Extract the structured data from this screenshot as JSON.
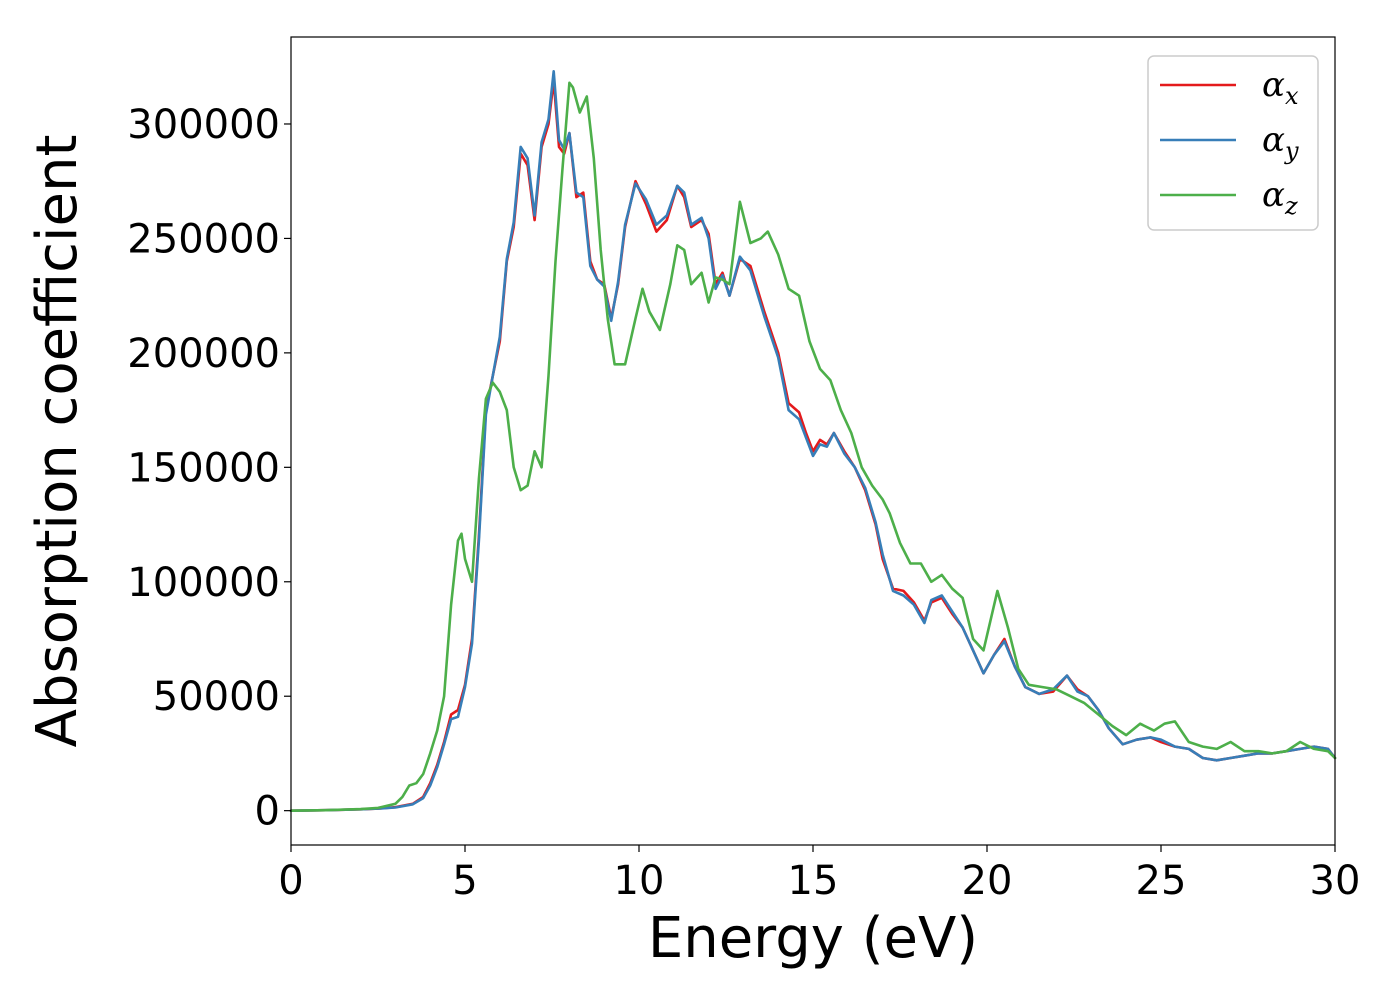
{
  "chart_data": {
    "type": "line",
    "title": "",
    "xlabel": "Energy (eV)",
    "ylabel": "Absorption coefficient",
    "xlim": [
      0,
      30
    ],
    "ylim": [
      -15000,
      338000
    ],
    "xticks": [
      0,
      5,
      10,
      15,
      20,
      25,
      30
    ],
    "yticks": [
      0,
      50000,
      100000,
      150000,
      200000,
      250000,
      300000
    ],
    "grid": false,
    "legend_position": "top-right",
    "series": [
      {
        "name": "α",
        "subscript": "x",
        "color": "#e41a1c",
        "x": [
          0,
          1,
          2,
          2.5,
          3,
          3.5,
          3.8,
          4.0,
          4.2,
          4.4,
          4.6,
          4.8,
          5.0,
          5.2,
          5.4,
          5.6,
          5.8,
          6.0,
          6.2,
          6.4,
          6.6,
          6.8,
          7.0,
          7.2,
          7.4,
          7.55,
          7.7,
          7.85,
          8.0,
          8.2,
          8.4,
          8.6,
          8.8,
          9.0,
          9.2,
          9.4,
          9.6,
          9.9,
          10.2,
          10.5,
          10.8,
          11.1,
          11.3,
          11.5,
          11.8,
          12.0,
          12.2,
          12.4,
          12.6,
          12.9,
          13.2,
          13.6,
          14.0,
          14.3,
          14.6,
          14.8,
          15.0,
          15.2,
          15.4,
          15.6,
          15.9,
          16.2,
          16.5,
          16.8,
          17.0,
          17.3,
          17.6,
          17.9,
          18.2,
          18.4,
          18.7,
          19.0,
          19.3,
          19.6,
          19.9,
          20.2,
          20.5,
          20.8,
          21.1,
          21.5,
          21.9,
          22.3,
          22.6,
          22.9,
          23.2,
          23.5,
          23.9,
          24.3,
          24.7,
          25.0,
          25.4,
          25.8,
          26.2,
          26.6,
          27.0,
          27.4,
          27.8,
          28.2,
          28.6,
          29.0,
          29.4,
          29.8,
          30.0
        ],
        "y": [
          0,
          200,
          600,
          900,
          1500,
          3000,
          6000,
          12000,
          20000,
          30000,
          42000,
          44000,
          55000,
          75000,
          120000,
          175000,
          190000,
          205000,
          240000,
          255000,
          287000,
          282000,
          258000,
          290000,
          300000,
          319000,
          290000,
          287000,
          296000,
          268000,
          270000,
          240000,
          232000,
          230000,
          215000,
          230000,
          255000,
          275000,
          265000,
          253000,
          258000,
          273000,
          268000,
          255000,
          258000,
          252000,
          230000,
          235000,
          225000,
          241000,
          238000,
          218000,
          200000,
          178000,
          174000,
          165000,
          157000,
          162000,
          160000,
          165000,
          157000,
          150000,
          140000,
          125000,
          110000,
          97000,
          96000,
          91000,
          83000,
          91000,
          93000,
          86000,
          80000,
          70000,
          60000,
          68000,
          75000,
          63000,
          54000,
          51000,
          52000,
          59000,
          53000,
          50000,
          44000,
          36000,
          29000,
          31000,
          32000,
          30000,
          28000,
          27000,
          23000,
          22000,
          23000,
          24000,
          25000,
          25000,
          26000,
          27000,
          28000,
          27000,
          23000
        ]
      },
      {
        "name": "α",
        "subscript": "y",
        "color": "#377eb8",
        "x": [
          0,
          1,
          2,
          2.5,
          3,
          3.5,
          3.8,
          4.0,
          4.2,
          4.4,
          4.6,
          4.8,
          5.0,
          5.2,
          5.4,
          5.6,
          5.8,
          6.0,
          6.2,
          6.4,
          6.6,
          6.8,
          7.0,
          7.2,
          7.4,
          7.55,
          7.7,
          7.85,
          8.0,
          8.2,
          8.4,
          8.6,
          8.8,
          9.0,
          9.2,
          9.4,
          9.6,
          9.9,
          10.2,
          10.5,
          10.8,
          11.1,
          11.3,
          11.5,
          11.8,
          12.0,
          12.2,
          12.4,
          12.6,
          12.9,
          13.2,
          13.6,
          14.0,
          14.3,
          14.6,
          14.8,
          15.0,
          15.2,
          15.4,
          15.6,
          15.9,
          16.2,
          16.5,
          16.8,
          17.0,
          17.3,
          17.6,
          17.9,
          18.2,
          18.4,
          18.7,
          19.0,
          19.3,
          19.6,
          19.9,
          20.2,
          20.5,
          20.8,
          21.1,
          21.5,
          21.9,
          22.3,
          22.6,
          22.9,
          23.2,
          23.5,
          23.9,
          24.3,
          24.7,
          25.0,
          25.4,
          25.8,
          26.2,
          26.6,
          27.0,
          27.4,
          27.8,
          28.2,
          28.6,
          29.0,
          29.4,
          29.8,
          30.0
        ],
        "y": [
          0,
          200,
          600,
          900,
          1400,
          2800,
          5500,
          11000,
          19000,
          29000,
          40000,
          41000,
          54000,
          73000,
          118000,
          173000,
          190000,
          207000,
          241000,
          257000,
          290000,
          285000,
          260000,
          292000,
          302000,
          323000,
          293000,
          289000,
          296000,
          270000,
          268000,
          238000,
          232000,
          229000,
          214000,
          231000,
          256000,
          274000,
          267000,
          256000,
          260000,
          273000,
          270000,
          256000,
          259000,
          250000,
          228000,
          234000,
          225000,
          242000,
          236000,
          216000,
          198000,
          175000,
          171000,
          163000,
          155000,
          160000,
          159000,
          165000,
          156000,
          150000,
          141000,
          126000,
          112000,
          96000,
          94000,
          90000,
          82000,
          92000,
          94000,
          87000,
          80000,
          70000,
          60000,
          68000,
          74000,
          63000,
          54000,
          51000,
          53000,
          59000,
          52000,
          50000,
          44000,
          36000,
          29000,
          31000,
          32000,
          31000,
          28000,
          27000,
          23000,
          22000,
          23000,
          24000,
          25000,
          25000,
          26000,
          27000,
          28000,
          27000,
          23000
        ]
      },
      {
        "name": "α",
        "subscript": "z",
        "color": "#4daf4a",
        "x": [
          0,
          1,
          2,
          2.5,
          3,
          3.2,
          3.4,
          3.6,
          3.8,
          4.0,
          4.2,
          4.4,
          4.6,
          4.8,
          4.9,
          5.0,
          5.2,
          5.4,
          5.6,
          5.8,
          6.0,
          6.2,
          6.4,
          6.6,
          6.8,
          7.0,
          7.2,
          7.4,
          7.6,
          7.8,
          8.0,
          8.1,
          8.3,
          8.5,
          8.7,
          8.9,
          9.1,
          9.3,
          9.6,
          9.9,
          10.1,
          10.3,
          10.6,
          10.9,
          11.1,
          11.3,
          11.5,
          11.8,
          12.0,
          12.2,
          12.4,
          12.6,
          12.9,
          13.2,
          13.5,
          13.7,
          14.0,
          14.3,
          14.6,
          14.9,
          15.2,
          15.5,
          15.8,
          16.1,
          16.4,
          16.7,
          17.0,
          17.2,
          17.5,
          17.8,
          18.1,
          18.4,
          18.7,
          19.0,
          19.3,
          19.6,
          19.9,
          20.3,
          20.6,
          20.9,
          21.2,
          21.6,
          22.0,
          22.4,
          22.8,
          23.2,
          23.6,
          24.0,
          24.4,
          24.8,
          25.1,
          25.4,
          25.8,
          26.2,
          26.6,
          27.0,
          27.4,
          27.8,
          28.2,
          28.6,
          29.0,
          29.4,
          29.8,
          30.0
        ],
        "y": [
          0,
          200,
          700,
          1200,
          3000,
          6000,
          11000,
          12000,
          16000,
          25000,
          35000,
          50000,
          90000,
          118000,
          121000,
          110000,
          100000,
          145000,
          180000,
          187000,
          183000,
          175000,
          150000,
          140000,
          142000,
          157000,
          150000,
          190000,
          240000,
          280000,
          318000,
          316000,
          305000,
          312000,
          285000,
          245000,
          215000,
          195000,
          195000,
          215000,
          228000,
          218000,
          210000,
          230000,
          247000,
          245000,
          230000,
          235000,
          222000,
          233000,
          232000,
          230000,
          266000,
          248000,
          250000,
          253000,
          243000,
          228000,
          225000,
          205000,
          193000,
          188000,
          175000,
          165000,
          150000,
          142000,
          136000,
          130000,
          117000,
          108000,
          108000,
          100000,
          103000,
          97000,
          93000,
          75000,
          70000,
          96000,
          80000,
          62000,
          55000,
          54000,
          53000,
          50000,
          47000,
          42000,
          37000,
          33000,
          38000,
          35000,
          38000,
          39000,
          30000,
          28000,
          27000,
          30000,
          26000,
          26000,
          25000,
          26000,
          30000,
          27000,
          26000,
          23000
        ]
      }
    ]
  }
}
